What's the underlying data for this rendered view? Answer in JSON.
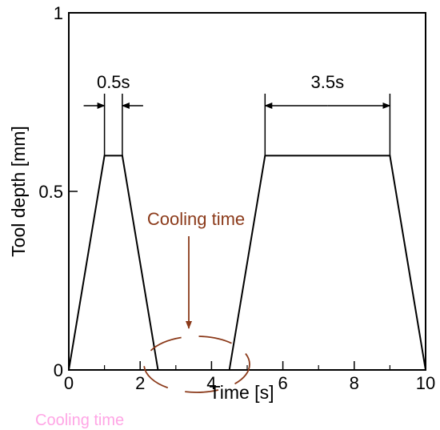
{
  "chart_data": {
    "type": "line",
    "title": "",
    "xlabel": "Time [s]",
    "ylabel": "Tool depth [mm]",
    "xlim": [
      0,
      10
    ],
    "ylim": [
      0,
      1
    ],
    "x_ticks": [
      0,
      2,
      4,
      6,
      8,
      10
    ],
    "x_tick_labels": [
      "0",
      "2",
      "4",
      "6",
      "8",
      "10"
    ],
    "x_minor_ticks": [
      1,
      3,
      5,
      7,
      9
    ],
    "y_ticks": [
      0,
      0.5,
      1
    ],
    "y_tick_labels": [
      "0",
      "0.5",
      "1"
    ],
    "grid": false,
    "series": [
      {
        "points": [
          [
            0,
            0
          ],
          [
            1.0,
            0.6
          ],
          [
            1.5,
            0.6
          ],
          [
            2.5,
            0
          ]
        ],
        "color": "#000000"
      },
      {
        "points": [
          [
            4.5,
            0
          ],
          [
            5.5,
            0.6
          ],
          [
            9.0,
            0.6
          ],
          [
            10,
            0
          ]
        ],
        "color": "#000000"
      }
    ],
    "annotations": [
      {
        "text": "0.5s",
        "x_start": 1.0,
        "x_end": 1.5,
        "y": 0.74
      },
      {
        "text": "3.5s",
        "x_start": 5.5,
        "x_end": 9.0,
        "y": 0.74
      },
      {
        "text": "Cooling time",
        "color": "#8b3a1a",
        "x_from": 2.5,
        "x_to": 4.5
      }
    ],
    "ghost_label": {
      "text": "Cooling time",
      "color": "#ff6ad5"
    }
  }
}
